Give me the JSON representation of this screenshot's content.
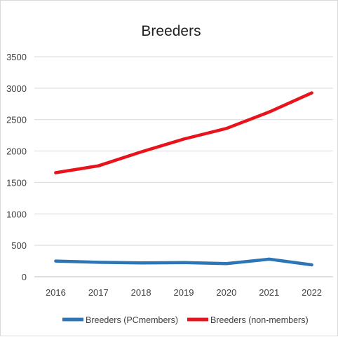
{
  "chart_data": {
    "type": "line",
    "title": "Breeders",
    "xlabel": "",
    "ylabel": "",
    "categories": [
      "2016",
      "2017",
      "2018",
      "2019",
      "2020",
      "2021",
      "2022"
    ],
    "y_ticks": [
      0,
      500,
      1000,
      1500,
      2000,
      2500,
      3000,
      3500
    ],
    "ylim": [
      0,
      3500
    ],
    "grid": true,
    "legend_position": "bottom",
    "series": [
      {
        "name": "Breeders (PC members)",
        "legend_label": "Breeders (PCmembers)",
        "color": "#2e75b6",
        "values": [
          250,
          230,
          220,
          225,
          210,
          280,
          190
        ]
      },
      {
        "name": "Breeders (non-members)",
        "legend_label": "Breeders (non-members)",
        "color": "#e8131b",
        "values": [
          1655,
          1765,
          1985,
          2190,
          2360,
          2620,
          2925
        ]
      }
    ]
  }
}
